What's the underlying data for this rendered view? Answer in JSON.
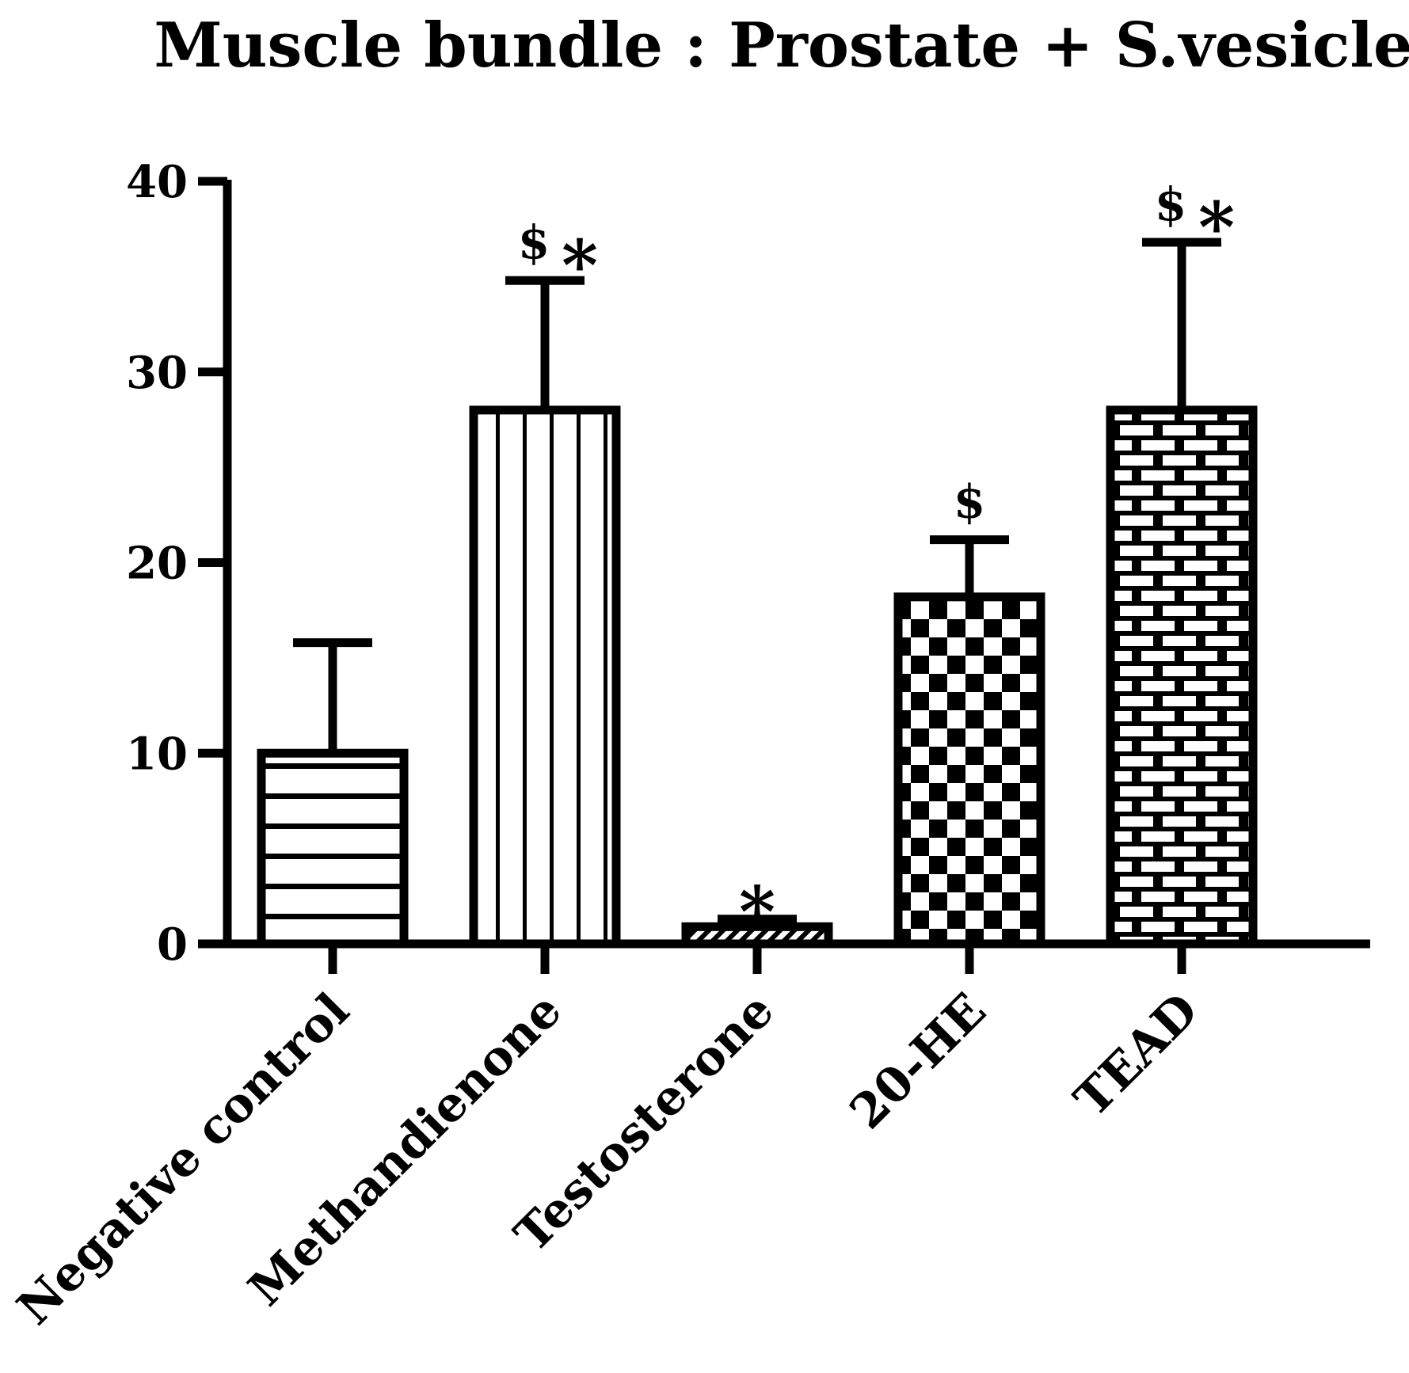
{
  "chart_data": {
    "type": "bar",
    "title": "Muscle bundle : Prostate + S.vesicles",
    "xlabel": "",
    "ylabel": "",
    "ylim": [
      0,
      40
    ],
    "yticks": [
      0,
      10,
      20,
      30,
      40
    ],
    "grid": false,
    "categories": [
      "Negative control",
      "Methandienone",
      "Testosterone",
      "20-HE",
      "TEAD"
    ],
    "values": [
      10,
      28,
      0.9,
      18.2,
      28
    ],
    "errors": [
      5.8,
      6.8,
      0.4,
      3,
      8.8
    ],
    "patterns": [
      "horizontal-lines",
      "vertical-lines",
      "diagonal-hatch",
      "checkerboard",
      "brick"
    ],
    "annotations": [
      {
        "category": "Methandienone",
        "dollar": "$",
        "star": "*"
      },
      {
        "category": "Testosterone",
        "dollar": "",
        "star": "*"
      },
      {
        "category": "20-HE",
        "dollar": "$",
        "star": ""
      },
      {
        "category": "TEAD",
        "dollar": "$",
        "star": "*"
      }
    ]
  }
}
